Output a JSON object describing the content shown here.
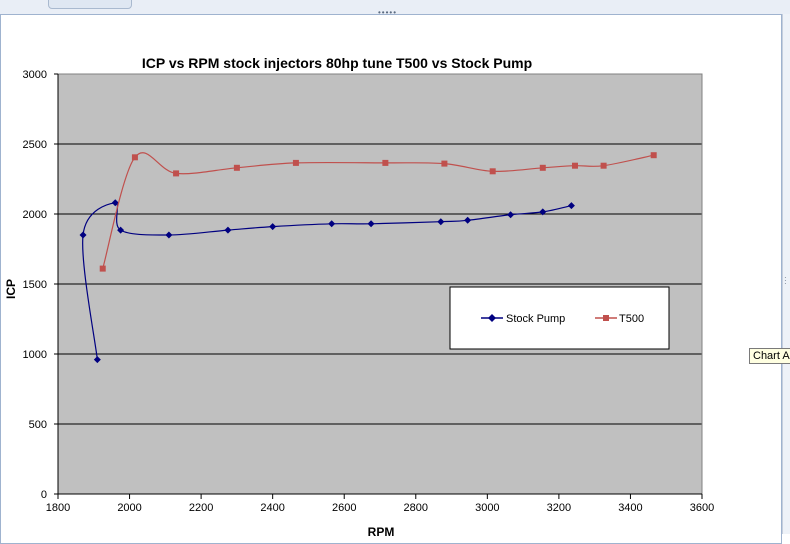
{
  "window": {
    "tooltip_text": "Chart A"
  },
  "chart_data": {
    "type": "line",
    "title": "ICP vs RPM stock injectors 80hp tune   T500 vs Stock Pump",
    "xlabel": "RPM",
    "ylabel": "ICP",
    "xlim": [
      1800,
      3600
    ],
    "ylim": [
      0,
      3000
    ],
    "xticks": [
      1800,
      2000,
      2200,
      2400,
      2600,
      2800,
      3000,
      3200,
      3400,
      3600
    ],
    "yticks": [
      0,
      500,
      1000,
      1500,
      2000,
      2500,
      3000
    ],
    "grid": "horizontal major gridlines",
    "plot_background": "#c0c0c0",
    "legend_position": "right-center, inside plot",
    "series": [
      {
        "name": "Stock Pump",
        "color": "#000080",
        "marker": "diamond",
        "points": [
          [
            1910,
            960
          ],
          [
            1870,
            1850
          ],
          [
            1960,
            2080
          ],
          [
            1975,
            1885
          ],
          [
            2110,
            1850
          ],
          [
            2275,
            1885
          ],
          [
            2400,
            1910
          ],
          [
            2565,
            1930
          ],
          [
            2675,
            1930
          ],
          [
            2870,
            1945
          ],
          [
            2945,
            1955
          ],
          [
            3065,
            1995
          ],
          [
            3155,
            2015
          ],
          [
            3235,
            2060
          ]
        ]
      },
      {
        "name": "T500",
        "color": "#c0504d",
        "marker": "square",
        "points": [
          [
            1925,
            1610
          ],
          [
            2015,
            2405
          ],
          [
            2130,
            2290
          ],
          [
            2300,
            2330
          ],
          [
            2465,
            2365
          ],
          [
            2715,
            2365
          ],
          [
            2880,
            2360
          ],
          [
            3015,
            2305
          ],
          [
            3155,
            2330
          ],
          [
            3245,
            2345
          ],
          [
            3325,
            2345
          ],
          [
            3465,
            2420
          ]
        ]
      }
    ]
  }
}
